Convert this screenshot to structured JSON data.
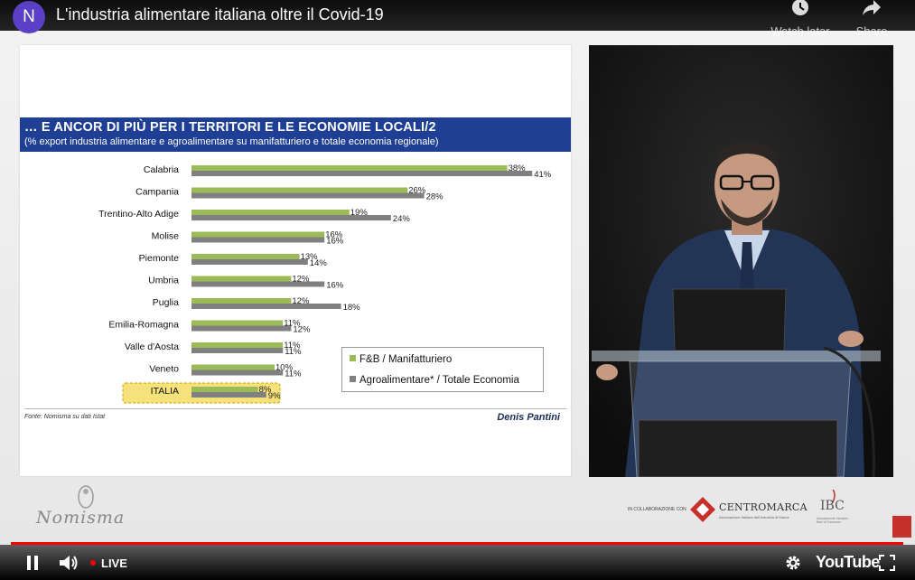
{
  "player": {
    "channel_initial": "N",
    "title": "L'industria alimentare italiana oltre il Covid-19",
    "watch_later_label": "Watch later",
    "share_label": "Share",
    "live_label": "LIVE",
    "brand_label": "YouTube"
  },
  "slide": {
    "title": "… E ANCOR DI PIÙ PER I TERRITORI E LE ECONOMIE LOCALI/2",
    "subtitle": "(% export industria alimentare e agroalimentare su manifatturiero e totale economia regionale)",
    "source": "Fonte: Nomisma su dati Istat",
    "author": "Denis Pantini"
  },
  "chart_data": {
    "type": "bar",
    "orientation": "horizontal",
    "categories": [
      "Calabria",
      "Campania",
      "Trentino-Alto Adige",
      "Molise",
      "Piemonte",
      "Umbria",
      "Puglia",
      "Emilia-Romagna",
      "Valle d'Aosta",
      "Veneto",
      "ITALIA"
    ],
    "highlight_category": "ITALIA",
    "series": [
      {
        "name": "F&B / Manifatturiero",
        "color": "#9bbb59",
        "values": [
          38,
          26,
          19,
          16,
          13,
          12,
          12,
          11,
          11,
          10,
          8
        ],
        "labels": [
          "38%",
          "26%",
          "19%",
          "16%",
          "13%",
          "12%",
          "12%",
          "11%",
          "11%",
          "10%",
          "8%"
        ]
      },
      {
        "name": "Agroalimentare* / Totale Economia",
        "color": "#808080",
        "values": [
          41,
          28,
          24,
          16,
          14,
          16,
          18,
          12,
          11,
          11,
          9
        ],
        "labels": [
          "41%",
          "28%",
          "24%",
          "16%",
          "14%",
          "16%",
          "18%",
          "12%",
          "11%",
          "11%",
          "9%"
        ]
      }
    ],
    "legend_position": "bottom-right",
    "grid": false
  },
  "footer": {
    "nomisma_label": "Nomisma",
    "collab_label": "IN COLLABORAZIONE CON",
    "centromarca_label": "CENTROMARCA",
    "centromarca_sub": "Associazione Italiana dell'Industria di Marca",
    "ibc_label": "IBC",
    "ibc_sub": "Associazione Industrie Beni di Consumo"
  },
  "colors": {
    "slide_header": "#1e3f93",
    "highlight_fill": "#f5e27a",
    "progress": "#ff0000"
  }
}
